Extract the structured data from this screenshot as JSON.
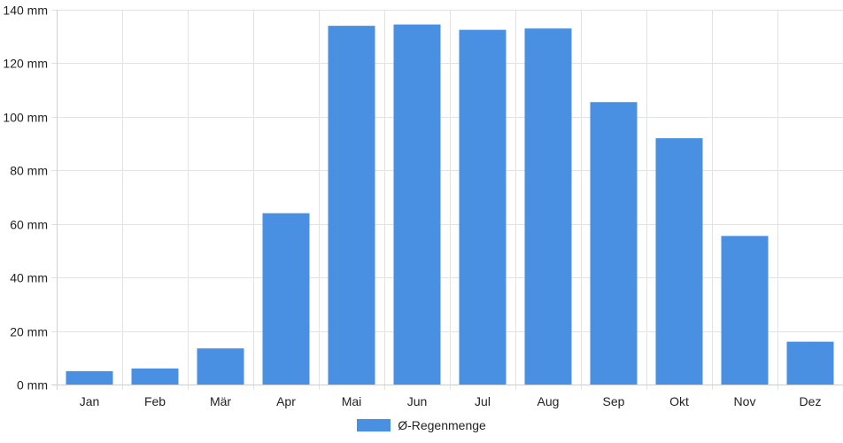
{
  "chart_data": {
    "type": "bar",
    "categories": [
      "Jan",
      "Feb",
      "Mär",
      "Apr",
      "Mai",
      "Jun",
      "Jul",
      "Aug",
      "Sep",
      "Okt",
      "Nov",
      "Dez"
    ],
    "series": [
      {
        "name": "Ø-Regenmenge",
        "values": [
          5,
          6,
          13.5,
          64,
          134,
          134.5,
          132.5,
          133,
          105.5,
          92,
          55.5,
          16
        ],
        "color": "#4a90e2"
      }
    ],
    "yticks": [
      "0 mm",
      "20 mm",
      "40 mm",
      "60 mm",
      "80 mm",
      "100 mm",
      "120 mm",
      "140 mm"
    ],
    "ylim": [
      0,
      140
    ],
    "grid": true,
    "legend_position": "bottom"
  }
}
